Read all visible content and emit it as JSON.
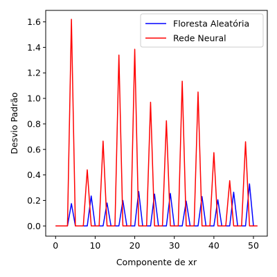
{
  "chart_data": {
    "type": "line",
    "xlabel": "Componente de xr",
    "ylabel": "Desvio Padrão",
    "xlim": [
      -2.5,
      53.5
    ],
    "ylim": [
      -0.08,
      1.69
    ],
    "xticks": [
      0,
      10,
      20,
      30,
      40,
      50
    ],
    "yticks": [
      0.0,
      0.2,
      0.4,
      0.6,
      0.8,
      1.0,
      1.2,
      1.4,
      1.6
    ],
    "xtick_labels": [
      "0",
      "10",
      "20",
      "30",
      "40",
      "50"
    ],
    "ytick_labels": [
      "0.0",
      "0.2",
      "0.4",
      "0.6",
      "0.8",
      "1.0",
      "1.2",
      "1.4",
      "1.6"
    ],
    "legend_position": "top-right",
    "grid": false,
    "series": [
      {
        "name": "Floresta Aleatória",
        "color": "#0000ff",
        "x": [
          0,
          1,
          2,
          3,
          4,
          5,
          6,
          7,
          8,
          9,
          10,
          11,
          12,
          13,
          14,
          15,
          16,
          17,
          18,
          19,
          20,
          21,
          22,
          23,
          24,
          25,
          26,
          27,
          28,
          29,
          30,
          31,
          32,
          33,
          34,
          35,
          36,
          37,
          38,
          39,
          40,
          41,
          42,
          43,
          44,
          45,
          46,
          47,
          48,
          49,
          50,
          51
        ],
        "y": [
          0,
          0,
          0,
          0,
          0.175,
          0,
          0,
          0,
          0,
          0.235,
          0,
          0,
          0,
          0.18,
          0,
          0,
          0,
          0.2,
          0,
          0,
          0,
          0.27,
          0,
          0,
          0,
          0.25,
          0,
          0,
          0,
          0.255,
          0,
          0,
          0,
          0.195,
          0,
          0,
          0,
          0.23,
          0,
          0,
          0,
          0.205,
          0,
          0,
          0,
          0.265,
          0,
          0,
          0,
          0.33,
          0,
          0
        ]
      },
      {
        "name": "Rede Neural",
        "color": "#ff0000",
        "x": [
          0,
          1,
          2,
          3,
          4,
          5,
          6,
          7,
          8,
          9,
          10,
          11,
          12,
          13,
          14,
          15,
          16,
          17,
          18,
          19,
          20,
          21,
          22,
          23,
          24,
          25,
          26,
          27,
          28,
          29,
          30,
          31,
          32,
          33,
          34,
          35,
          36,
          37,
          38,
          39,
          40,
          41,
          42,
          43,
          44,
          45,
          46,
          47,
          48,
          49,
          50,
          51
        ],
        "y": [
          0,
          0,
          0,
          0,
          1.62,
          0,
          0,
          0,
          0.44,
          0,
          0,
          0,
          0.665,
          0,
          0,
          0,
          1.34,
          0,
          0,
          0,
          1.385,
          0,
          0,
          0,
          0.97,
          0,
          0,
          0,
          0.825,
          0,
          0,
          0,
          1.135,
          0,
          0,
          0,
          1.05,
          0,
          0,
          0,
          0.575,
          0,
          0,
          0,
          0.355,
          0,
          0,
          0,
          0.66,
          0,
          0,
          0
        ]
      }
    ]
  }
}
